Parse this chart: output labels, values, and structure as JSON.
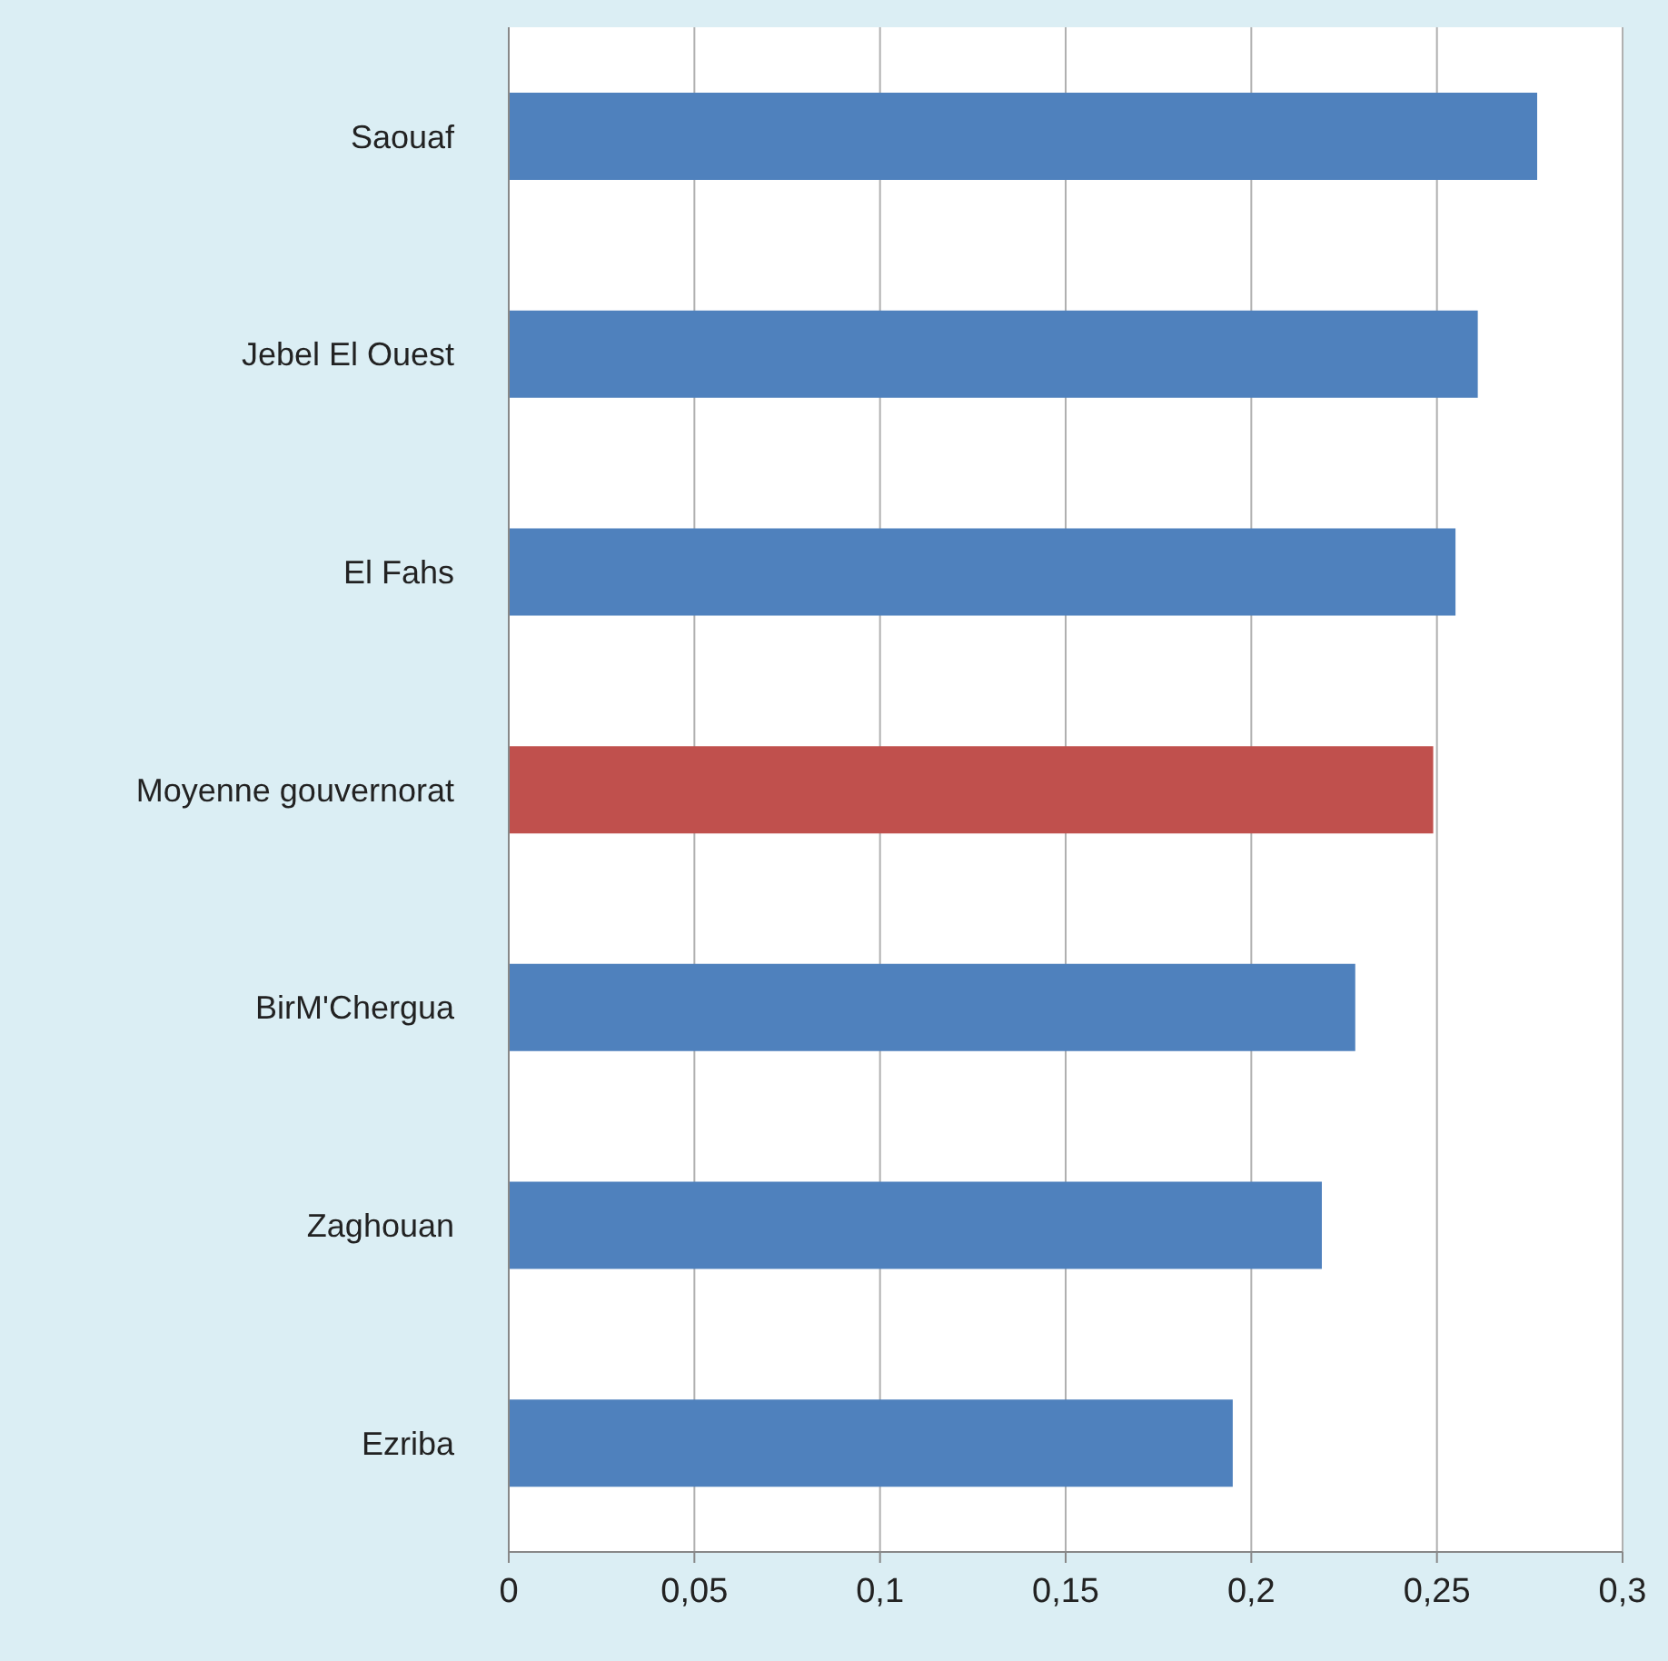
{
  "chart_data": {
    "type": "bar",
    "orientation": "horizontal",
    "categories": [
      "Saouaf",
      "Jebel El Ouest",
      "El Fahs",
      "Moyenne gouvernorat",
      "BirM'Chergua",
      "Zaghouan",
      "Ezriba"
    ],
    "values": [
      0.277,
      0.261,
      0.255,
      0.249,
      0.228,
      0.219,
      0.195
    ],
    "colors": [
      "#4f81bd",
      "#4f81bd",
      "#4f81bd",
      "#c0504d",
      "#4f81bd",
      "#4f81bd",
      "#4f81bd"
    ],
    "xlim": [
      0,
      0.3
    ],
    "xticks": [
      0,
      {
        "value": 0.05,
        "label": "0,05"
      },
      {
        "value": 0.1,
        "label": "0,1"
      },
      {
        "value": 0.15,
        "label": "0,15"
      },
      {
        "value": 0.2,
        "label": "0,2"
      },
      {
        "value": 0.25,
        "label": "0,25"
      },
      {
        "value": 0.3,
        "label": "0,3"
      }
    ],
    "grid": "x"
  }
}
